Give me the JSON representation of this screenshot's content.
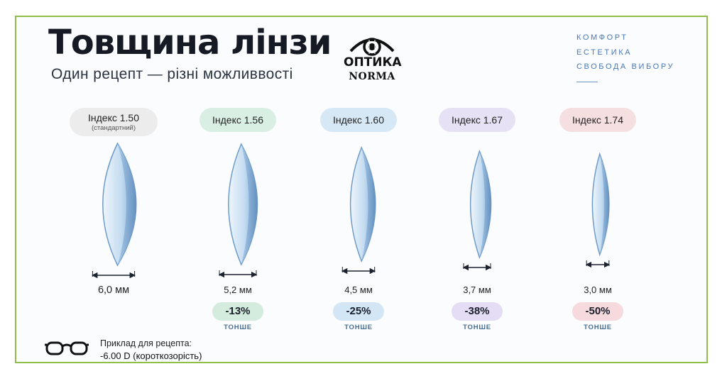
{
  "header": {
    "title": "Товщина лінзи",
    "subtitle": "Один рецепт — різні можливвості"
  },
  "logo": {
    "word1": "ОПТИКА",
    "word2": "NORMA",
    "icon": "eye-icon"
  },
  "taglines": [
    "КОМФОРТ",
    "ЕСТЕТИКА",
    "СВОБОДА ВИБОРУ"
  ],
  "lenses": [
    {
      "index": "Індекс 1.50",
      "note": "(стандартний)",
      "thickness": "6,0 мм",
      "thickness_mm": 6.0,
      "reduction": "",
      "reduction_label": "",
      "pill_color": "#ececec",
      "badge_color": ""
    },
    {
      "index": "Індекс 1.56",
      "note": "",
      "thickness": "5,2 мм",
      "thickness_mm": 5.2,
      "reduction": "-13%",
      "reduction_label": "ТОНШЕ",
      "pill_color": "#d9efe3",
      "badge_color": "#d3ecdd"
    },
    {
      "index": "Індекс 1.60",
      "note": "",
      "thickness": "4,5 мм",
      "thickness_mm": 4.5,
      "reduction": "-25%",
      "reduction_label": "ТОНШЕ",
      "pill_color": "#d6e8f6",
      "badge_color": "#d2e6f6"
    },
    {
      "index": "Індекс 1.67",
      "note": "",
      "thickness": "3,7 мм",
      "thickness_mm": 3.7,
      "reduction": "-38%",
      "reduction_label": "ТОНШЕ",
      "pill_color": "#e7e1f5",
      "badge_color": "#e4ddf5"
    },
    {
      "index": "Індекс 1.74",
      "note": "",
      "thickness": "3,0 мм",
      "thickness_mm": 3.0,
      "reduction": "-50%",
      "reduction_label": "ТОНШЕ",
      "pill_color": "#f6dfe1",
      "badge_color": "#f6dadd"
    }
  ],
  "prescription": {
    "icon": "glasses-icon",
    "label": "Приклад для рецепта:",
    "value": "-6.00 D (короткозорість)"
  },
  "colors": {
    "border": "#8fbf4a",
    "accent": "#4a78b8",
    "lens": "#a9c9e6"
  }
}
